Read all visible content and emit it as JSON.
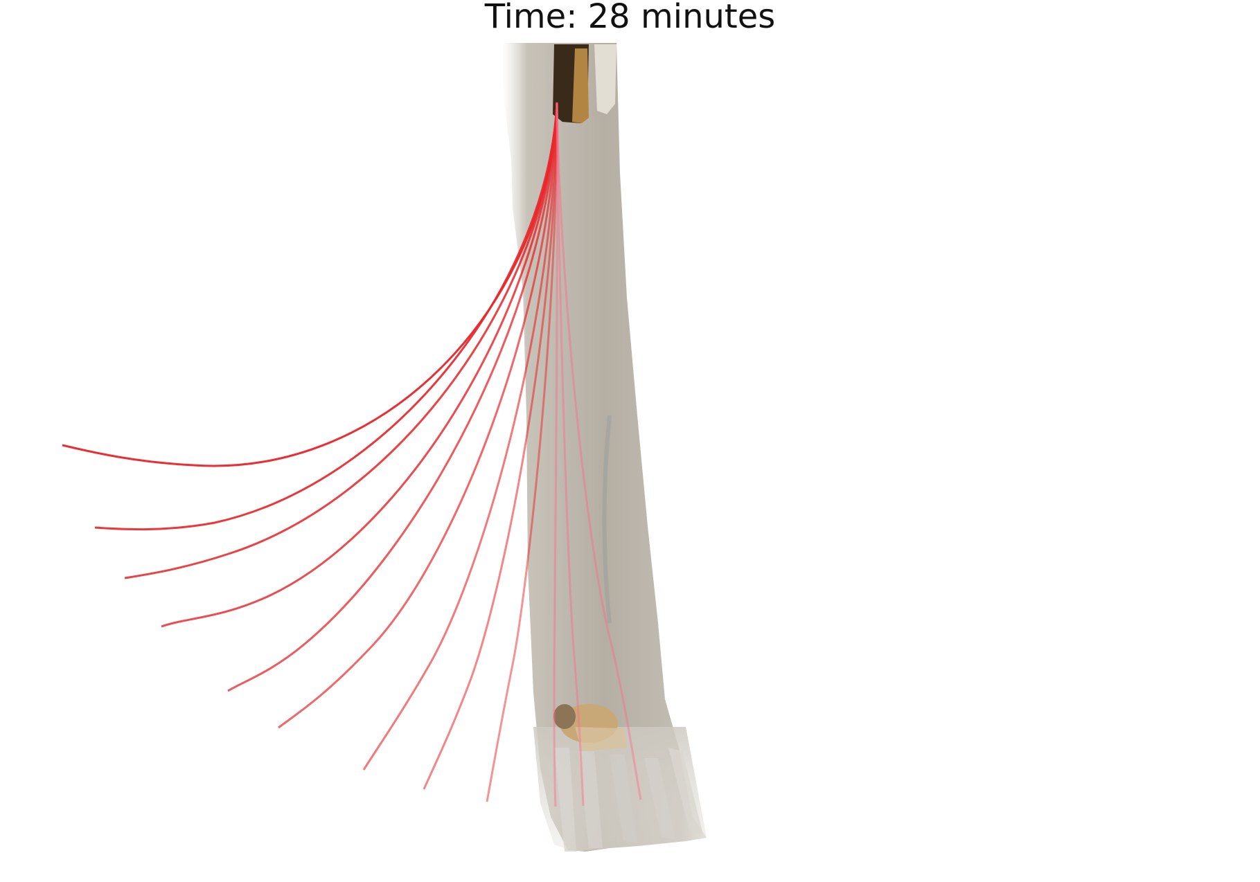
{
  "title": "Time: 28 minutes",
  "colors": {
    "background": "#ffffff",
    "trace": "#e8282c",
    "stem": "#b9b4aa"
  }
}
